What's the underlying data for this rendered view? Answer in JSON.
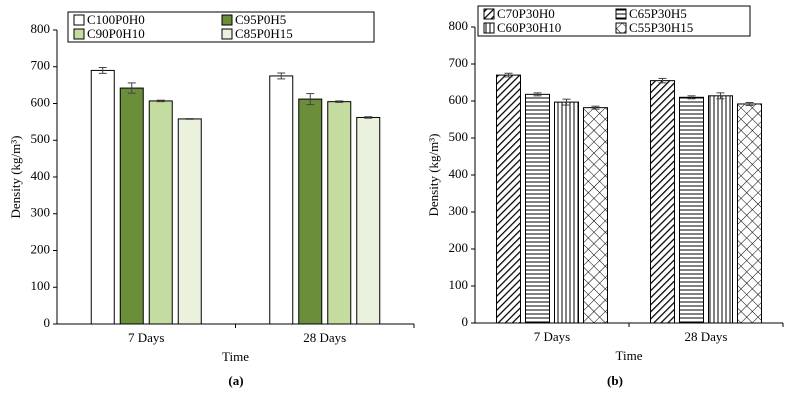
{
  "chart_data": [
    {
      "type": "bar",
      "panel_label": "(a)",
      "xlabel": "Time",
      "ylabel": "Density (kg/m³)",
      "categories": [
        "7 Days",
        "28 Days"
      ],
      "ylim": [
        0,
        800
      ],
      "yticks": [
        0,
        100,
        200,
        300,
        400,
        500,
        600,
        700,
        800
      ],
      "series": [
        {
          "name": "C100P0H0",
          "color": "#ffffff",
          "pattern": "none",
          "values": [
            690,
            675
          ],
          "errors": [
            8,
            8
          ]
        },
        {
          "name": "C95P0H5",
          "color": "#6b8e3a",
          "pattern": "none",
          "values": [
            642,
            612
          ],
          "errors": [
            14,
            15
          ]
        },
        {
          "name": "C90P0H10",
          "color": "#c5dca0",
          "pattern": "none",
          "values": [
            607,
            605
          ],
          "errors": [
            2,
            2
          ]
        },
        {
          "name": "C85P0H15",
          "color": "#eaf1dc",
          "pattern": "none",
          "values": [
            558,
            562
          ],
          "errors": [
            1,
            2
          ]
        }
      ]
    },
    {
      "type": "bar",
      "panel_label": "(b)",
      "xlabel": "Time",
      "ylabel": "Density (kg/m³)",
      "categories": [
        "7 Days",
        "28 Days"
      ],
      "ylim": [
        0,
        800
      ],
      "yticks": [
        0,
        100,
        200,
        300,
        400,
        500,
        600,
        700,
        800
      ],
      "series": [
        {
          "name": "C70P30H0",
          "color": "#ffffff",
          "pattern": "diagonal",
          "values": [
            670,
            655
          ],
          "errors": [
            5,
            6
          ]
        },
        {
          "name": "C65P30H5",
          "color": "#ffffff",
          "pattern": "horizontal",
          "values": [
            618,
            610
          ],
          "errors": [
            4,
            4
          ]
        },
        {
          "name": "C60P30H10",
          "color": "#ffffff",
          "pattern": "vertical",
          "values": [
            597,
            614
          ],
          "errors": [
            8,
            8
          ]
        },
        {
          "name": "C55P30H15",
          "color": "#ffffff",
          "pattern": "cross",
          "values": [
            582,
            592
          ],
          "errors": [
            4,
            4
          ]
        }
      ]
    }
  ]
}
